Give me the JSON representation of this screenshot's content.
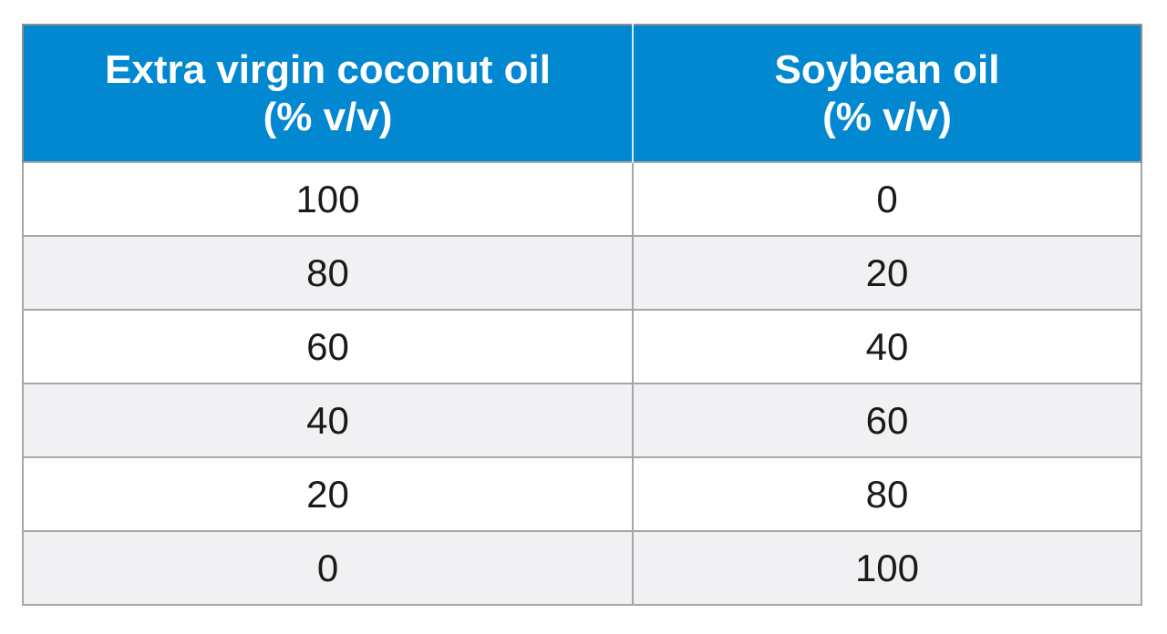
{
  "colors": {
    "header_bg": "#0288d1",
    "header_text": "#ffffff",
    "row_alt_bg": "#f1f1f4",
    "border": "#a6a6a8"
  },
  "table": {
    "headers": [
      {
        "line1": "Extra virgin coconut oil",
        "line2": "(% v/v)"
      },
      {
        "line1": "Soybean oil",
        "line2": "(% v/v)"
      }
    ],
    "rows": [
      [
        "100",
        "0"
      ],
      [
        "80",
        "20"
      ],
      [
        "60",
        "40"
      ],
      [
        "40",
        "60"
      ],
      [
        "20",
        "80"
      ],
      [
        "0",
        "100"
      ]
    ]
  }
}
